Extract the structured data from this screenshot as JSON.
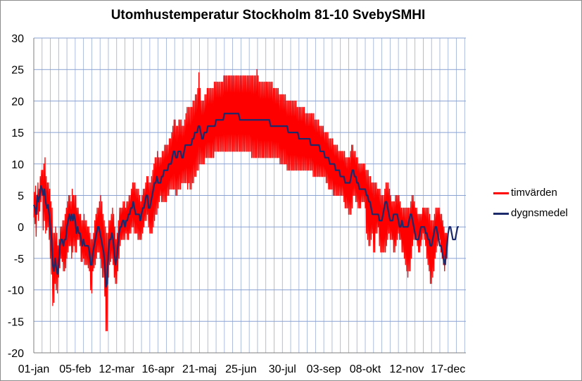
{
  "chart_data": {
    "type": "line",
    "title": "Utomhustemperatur Stockholm 81-10 SvebySMHI",
    "xlabel": "",
    "ylabel": "",
    "ylim": [
      -20,
      30
    ],
    "yticks": [
      -20,
      -15,
      -10,
      -5,
      0,
      5,
      10,
      15,
      20,
      25,
      30
    ],
    "xlim": [
      0,
      365
    ],
    "xticks": [
      {
        "day": 0,
        "label": "01-jan"
      },
      {
        "day": 35,
        "label": "05-feb"
      },
      {
        "day": 70,
        "label": "12-mar"
      },
      {
        "day": 105,
        "label": "16-apr"
      },
      {
        "day": 140,
        "label": "21-maj"
      },
      {
        "day": 175,
        "label": "25-jun"
      },
      {
        "day": 210,
        "label": "30-jul"
      },
      {
        "day": 245,
        "label": "03-sep"
      },
      {
        "day": 280,
        "label": "08-okt"
      },
      {
        "day": 315,
        "label": "12-nov"
      },
      {
        "day": 350,
        "label": "17-dec"
      }
    ],
    "grid": true,
    "legend_position": "right",
    "series": [
      {
        "name": "timvärden",
        "color": "#ff0000",
        "x_step_days": 1,
        "min": [
          1.5,
          0.5,
          -1.5,
          2,
          1,
          2.5,
          4,
          5,
          -0.5,
          1,
          -1,
          -0.5,
          0,
          -2,
          -5,
          -7.5,
          -12.5,
          -12,
          -9,
          -10,
          -10.5,
          -8,
          -6.5,
          -5,
          -5.5,
          -7,
          -7,
          -6.5,
          -5,
          -4,
          -3,
          -3,
          -5,
          -4,
          -3,
          -4,
          -4,
          -2,
          -2,
          -3,
          -5.5,
          -5.5,
          -5,
          -6,
          -6,
          -6,
          -6.5,
          -7,
          -10,
          -10.5,
          -7,
          -6.5,
          -6,
          -5,
          -4,
          -4,
          -5,
          -6.5,
          -8,
          -8,
          -11,
          -16.5,
          -16.5,
          -8,
          -6,
          -5.5,
          -5,
          -6,
          -8,
          -9,
          -9,
          -7,
          -5,
          -3,
          -2,
          -2,
          -2,
          -2,
          -1,
          -2,
          -2,
          -1,
          -1,
          0,
          0,
          -1,
          -1,
          -1,
          -2,
          -2,
          -2,
          -2,
          -1,
          0,
          1,
          1,
          2,
          0,
          -1,
          -1,
          -1,
          0,
          1,
          2,
          2,
          3,
          4,
          5,
          4,
          4,
          4,
          4,
          4,
          5,
          5,
          6,
          6,
          6,
          6,
          6,
          5,
          5,
          6,
          6,
          6,
          7,
          7,
          7,
          7,
          7,
          6,
          7,
          6,
          6,
          7,
          7,
          8,
          8,
          9,
          9,
          10,
          10,
          10,
          10,
          10,
          11,
          11,
          11,
          11,
          11,
          11,
          11,
          11,
          12,
          12,
          12,
          12,
          12,
          12,
          12,
          12,
          12,
          12,
          12,
          12,
          12,
          12,
          12,
          12,
          12,
          12,
          12,
          12,
          12,
          12,
          12,
          12,
          12,
          12,
          12,
          12,
          12,
          12,
          12,
          11,
          11,
          11,
          11,
          11,
          11,
          11,
          11,
          11,
          11,
          11,
          11,
          11,
          11,
          11,
          11,
          11,
          11,
          11,
          11,
          11,
          11,
          11,
          11,
          10,
          10,
          10,
          10,
          10,
          10,
          9,
          9,
          9,
          9,
          9,
          9,
          9,
          9,
          9,
          9,
          9,
          9,
          9,
          9,
          9,
          9,
          9,
          9,
          9,
          9,
          9,
          9,
          8,
          8,
          8,
          8,
          8,
          8,
          8,
          8,
          8,
          8,
          8,
          7,
          7,
          6,
          6,
          6,
          6,
          5,
          5,
          5,
          5,
          5,
          5,
          5,
          5,
          5,
          4,
          3,
          3,
          3,
          2,
          2,
          2,
          3,
          5,
          5,
          4,
          4,
          3,
          3,
          3,
          4,
          4,
          4,
          3,
          -1,
          -2,
          -3,
          -3,
          -2,
          -1,
          -4,
          -4,
          -1,
          -1,
          0,
          -3,
          -4,
          -4,
          -4,
          -4,
          -4,
          -3,
          -2,
          -1,
          -2,
          -2,
          -2,
          -4,
          -4,
          -3,
          -2,
          -1,
          -2,
          -2,
          -4,
          -4,
          -5,
          -6,
          -7,
          -8,
          -7,
          -7,
          -5,
          -3,
          -2,
          -2,
          -2,
          -3,
          -4,
          -4,
          -3,
          -2,
          -1,
          -2,
          -3,
          -5,
          -6,
          -7,
          -9,
          -9,
          -8,
          -7,
          -5,
          -4,
          -3,
          -2,
          -2,
          -4,
          -5,
          -6,
          -7,
          -6,
          -5
        ],
        "max": [
          5.5,
          6.5,
          5,
          7,
          6,
          8,
          9,
          9,
          10,
          11,
          8,
          7,
          7,
          6,
          4,
          3,
          -1,
          -1,
          0,
          -1,
          -3,
          -2,
          0,
          0,
          1,
          1,
          2,
          3,
          4,
          5,
          5,
          4,
          6,
          5,
          5,
          5,
          3,
          3,
          2,
          2,
          1,
          1,
          2,
          1,
          1,
          0,
          0,
          -1,
          -2,
          -2,
          -1,
          1,
          2,
          3,
          3,
          4,
          5,
          4,
          2,
          1,
          0,
          -1,
          -1,
          1,
          1,
          2,
          3,
          2,
          0,
          -2,
          -1,
          1,
          3,
          3,
          3,
          4,
          4,
          3,
          4,
          4,
          5,
          5,
          6,
          7,
          7,
          7,
          6,
          6,
          6,
          5,
          4,
          5,
          6,
          6,
          7,
          8,
          8,
          7,
          7,
          8,
          9,
          10,
          11,
          11,
          12,
          11,
          11,
          11,
          12,
          12,
          13,
          13,
          13,
          13,
          14,
          14,
          15,
          16,
          17,
          17,
          16,
          16,
          17,
          17,
          17,
          16,
          16,
          17,
          18,
          19,
          19,
          19,
          19,
          19,
          20,
          20,
          21,
          21,
          22,
          24.5,
          22,
          20,
          20,
          20,
          21,
          21,
          22,
          22,
          22,
          22,
          22,
          22,
          23,
          23,
          23,
          23,
          23,
          23,
          23,
          23,
          24,
          24,
          24,
          24,
          24,
          24,
          24,
          24,
          24,
          24,
          24,
          24,
          24,
          24,
          24,
          24,
          24,
          24,
          24,
          24,
          24,
          24,
          24,
          24,
          24,
          24,
          24,
          24,
          25,
          24,
          23,
          23,
          23,
          23,
          23,
          23,
          23,
          23,
          23,
          23,
          23,
          23,
          22,
          22,
          22,
          22,
          22,
          21,
          21,
          21,
          21,
          21,
          21,
          20,
          20,
          20,
          20,
          20,
          20,
          20,
          20,
          20,
          19,
          19,
          19,
          19,
          19,
          19,
          19,
          18,
          18,
          18,
          18,
          18,
          18,
          18,
          18,
          17,
          17,
          17,
          17,
          16,
          16,
          16,
          16,
          15,
          15,
          15,
          15,
          14,
          14,
          14,
          14,
          13,
          13,
          13,
          13,
          12,
          12,
          12,
          12,
          12,
          12,
          11,
          11,
          11,
          11,
          12,
          13,
          13,
          12,
          12,
          11,
          11,
          10,
          10,
          10,
          10,
          10,
          10,
          9,
          9,
          9,
          8,
          8,
          7,
          7,
          7,
          7,
          7,
          6,
          6,
          6,
          5,
          5,
          5,
          6,
          7,
          7,
          7,
          6,
          5,
          4,
          4,
          4,
          5,
          5,
          5,
          5,
          4,
          3,
          3,
          3,
          3,
          3,
          3,
          3,
          3,
          4,
          5,
          5,
          4,
          3,
          3,
          2,
          2,
          2,
          2,
          3,
          3,
          3,
          3,
          3,
          3,
          2,
          1,
          1,
          1,
          2,
          3,
          3,
          3,
          3,
          2,
          2,
          1,
          0,
          -1,
          -1,
          -1,
          1,
          2,
          3,
          3,
          3,
          3,
          3,
          2,
          1,
          1,
          2,
          3
        ]
      },
      {
        "name": "dygnsmedel",
        "color": "#1c2a6b",
        "x_step_days": 1,
        "values": [
          3.5,
          3,
          2,
          5,
          4,
          5,
          6.5,
          6,
          5,
          6,
          4,
          3,
          3.5,
          2,
          0,
          -2,
          -6,
          -7,
          -5,
          -6.5,
          -7.5,
          -6,
          -3,
          -2,
          -2,
          -3,
          -2,
          -2,
          0,
          1,
          2,
          1,
          2,
          1,
          2,
          1,
          -1,
          0,
          -1,
          -1,
          -2,
          -3,
          -2,
          -3,
          -3,
          -3,
          -3,
          -4,
          -6,
          -6,
          -4,
          -3,
          -2,
          -1,
          0,
          0,
          -1,
          -2,
          -3,
          -4,
          -6,
          -9.5,
          -9,
          -4,
          -2,
          -2,
          -1,
          -2,
          -4,
          -6,
          -5,
          -3,
          -1,
          0,
          0,
          1,
          1,
          0,
          1,
          1,
          2,
          2,
          3,
          3,
          4,
          3,
          2,
          2,
          2,
          2,
          1,
          2,
          3,
          3,
          4,
          5,
          5,
          3,
          3,
          4,
          5,
          6,
          7,
          7,
          8,
          7,
          7,
          7,
          8,
          8,
          9,
          9,
          9,
          9,
          10,
          10,
          10,
          11,
          12,
          12,
          11,
          11,
          12,
          12,
          12,
          11,
          11,
          12,
          13,
          13,
          13,
          13,
          13,
          13,
          14,
          14,
          15,
          15,
          15,
          16,
          16,
          15,
          14,
          14,
          15,
          15,
          15,
          16,
          16,
          16,
          16,
          16,
          16,
          16,
          17,
          17,
          17,
          17,
          17,
          17,
          17,
          18,
          18,
          18,
          18,
          18,
          18,
          18,
          18,
          18,
          18,
          18,
          18,
          18,
          17,
          17,
          17,
          17,
          17,
          17,
          17,
          17,
          17,
          17,
          17,
          17,
          17,
          17,
          17,
          17,
          17,
          17,
          17,
          17,
          17,
          17,
          17,
          17,
          17,
          17,
          16,
          16,
          16,
          16,
          16,
          16,
          16,
          16,
          16,
          16,
          16,
          16,
          16,
          16,
          16,
          15,
          15,
          15,
          15,
          15,
          15,
          15,
          15,
          15,
          14,
          14,
          14,
          14,
          14,
          14,
          14,
          14,
          14,
          14,
          13,
          13,
          13,
          13,
          13,
          13,
          13,
          13,
          12,
          12,
          12,
          12,
          11,
          11,
          11,
          11,
          10,
          10,
          10,
          10,
          10,
          9,
          9,
          9,
          9,
          8,
          8,
          8,
          8,
          7,
          7,
          7,
          7,
          7,
          8,
          9,
          9,
          8,
          8,
          7,
          7,
          6,
          6,
          6,
          6,
          6,
          6,
          5,
          5,
          4,
          4,
          3,
          2,
          2,
          2,
          2,
          2,
          2,
          1,
          1,
          1,
          2,
          3,
          4,
          4,
          3,
          2,
          1,
          1,
          1,
          2,
          2,
          2,
          2,
          1,
          0,
          0,
          1,
          0,
          0,
          0,
          0,
          0,
          1,
          2,
          2,
          1,
          0,
          -1,
          -2,
          -2,
          -2,
          -1,
          0,
          0,
          0,
          0,
          -1,
          -1,
          -2,
          -2,
          -3,
          -3,
          -2,
          -1,
          0,
          0,
          -1,
          -2,
          -3,
          -3,
          -4,
          -5,
          -6,
          -5,
          -3,
          -1,
          0,
          0,
          -1,
          -2,
          -2,
          -2,
          -1,
          0,
          0
        ]
      }
    ]
  }
}
